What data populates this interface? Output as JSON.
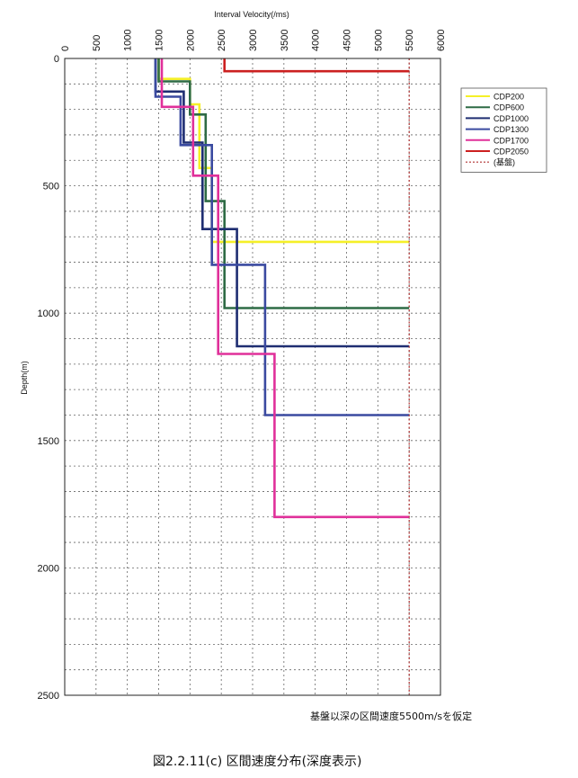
{
  "chart_data": {
    "type": "line",
    "title": "",
    "xlabel": "Interval Velocity(/ms)",
    "ylabel": "Depth(m)",
    "xlim": [
      0,
      6000
    ],
    "ylim": [
      0,
      2500
    ],
    "x_axis_position": "top",
    "y_inverted": true,
    "x_ticks": [
      "0",
      "500",
      "1000",
      "1500",
      "2000",
      "2500",
      "3000",
      "3500",
      "4000",
      "4500",
      "5000",
      "5500",
      "6000"
    ],
    "y_ticks": [
      "0",
      "500",
      "1000",
      "1500",
      "2000",
      "2500"
    ],
    "grid": true,
    "legend_position": "top-right",
    "series": [
      {
        "name": "CDP200",
        "color": "#f5f028",
        "style": "solid",
        "points": [
          [
            1500,
            0
          ],
          [
            1500,
            80
          ],
          [
            2000,
            80
          ],
          [
            2000,
            180
          ],
          [
            2150,
            180
          ],
          [
            2150,
            430
          ],
          [
            2350,
            430
          ],
          [
            2350,
            720
          ],
          [
            5500,
            720
          ]
        ]
      },
      {
        "name": "CDP600",
        "color": "#2e6b45",
        "style": "solid",
        "points": [
          [
            1500,
            0
          ],
          [
            1500,
            90
          ],
          [
            2000,
            90
          ],
          [
            2000,
            220
          ],
          [
            2250,
            220
          ],
          [
            2250,
            560
          ],
          [
            2550,
            560
          ],
          [
            2550,
            980
          ],
          [
            5500,
            980
          ]
        ]
      },
      {
        "name": "CDP1000",
        "color": "#1f2e72",
        "style": "solid",
        "points": [
          [
            1450,
            0
          ],
          [
            1450,
            130
          ],
          [
            1900,
            130
          ],
          [
            1900,
            330
          ],
          [
            2200,
            330
          ],
          [
            2200,
            670
          ],
          [
            2750,
            670
          ],
          [
            2750,
            1130
          ],
          [
            5500,
            1130
          ]
        ]
      },
      {
        "name": "CDP1300",
        "color": "#3a4aa0",
        "style": "solid",
        "points": [
          [
            1450,
            0
          ],
          [
            1450,
            150
          ],
          [
            1850,
            150
          ],
          [
            1850,
            340
          ],
          [
            2350,
            340
          ],
          [
            2350,
            810
          ],
          [
            3200,
            810
          ],
          [
            3200,
            1400
          ],
          [
            5500,
            1400
          ]
        ]
      },
      {
        "name": "CDP1700",
        "color": "#e0309a",
        "style": "solid",
        "points": [
          [
            1550,
            0
          ],
          [
            1550,
            190
          ],
          [
            2050,
            190
          ],
          [
            2050,
            460
          ],
          [
            2450,
            460
          ],
          [
            2450,
            1160
          ],
          [
            3350,
            1160
          ],
          [
            3350,
            1800
          ],
          [
            5500,
            1800
          ]
        ]
      },
      {
        "name": "CDP2050",
        "color": "#cc2020",
        "style": "solid",
        "points": [
          [
            2550,
            0
          ],
          [
            2550,
            50
          ],
          [
            5500,
            50
          ]
        ]
      },
      {
        "name": "(基盤)",
        "color": "#b03030",
        "style": "dotted",
        "points": [
          [
            5500,
            0
          ],
          [
            5500,
            2500
          ]
        ]
      }
    ]
  },
  "note": "基盤以深の区間速度5500m/sを仮定",
  "caption": "図2.2.11(c)  区間速度分布(深度表示)"
}
